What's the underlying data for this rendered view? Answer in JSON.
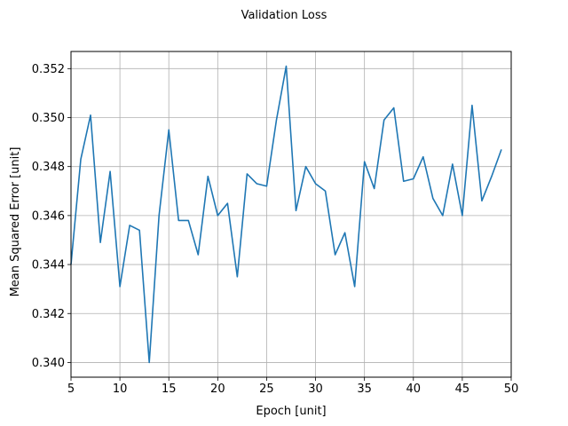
{
  "chart_data": {
    "type": "line",
    "title": "Validation Loss",
    "xlabel": "Epoch [unit]",
    "ylabel": "Mean Squared Error [unit]",
    "xlim": [
      5,
      50
    ],
    "ylim": [
      0.3394,
      0.3527
    ],
    "xticks": [
      5,
      10,
      15,
      20,
      25,
      30,
      35,
      40,
      45,
      50
    ],
    "xtick_labels": [
      "5",
      "10",
      "15",
      "20",
      "25",
      "30",
      "35",
      "40",
      "45",
      "50"
    ],
    "yticks": [
      0.34,
      0.342,
      0.344,
      0.346,
      0.348,
      0.35,
      0.352
    ],
    "ytick_labels": [
      "0.340",
      "0.342",
      "0.344",
      "0.346",
      "0.348",
      "0.350",
      "0.352"
    ],
    "grid": true,
    "series": [
      {
        "color": "#1f77b4",
        "x": [
          5,
          6,
          7,
          8,
          9,
          10,
          11,
          12,
          13,
          14,
          15,
          16,
          17,
          18,
          19,
          20,
          21,
          22,
          23,
          24,
          25,
          26,
          27,
          28,
          29,
          30,
          31,
          32,
          33,
          34,
          35,
          36,
          37,
          38,
          39,
          40,
          41,
          42,
          43,
          44,
          45,
          46,
          47,
          48,
          49
        ],
        "y": [
          0.344,
          0.3483,
          0.3501,
          0.3449,
          0.3478,
          0.3431,
          0.3456,
          0.3454,
          0.34,
          0.346,
          0.3495,
          0.3458,
          0.3458,
          0.3444,
          0.3476,
          0.346,
          0.3465,
          0.3435,
          0.3477,
          0.3473,
          0.3472,
          0.3499,
          0.3521,
          0.3462,
          0.348,
          0.3473,
          0.347,
          0.3444,
          0.3453,
          0.3431,
          0.3482,
          0.3471,
          0.3499,
          0.3504,
          0.3474,
          0.3475,
          0.3484,
          0.3467,
          0.346,
          0.3481,
          0.346,
          0.3505,
          0.3466,
          0.3476,
          0.3487
        ]
      }
    ]
  }
}
